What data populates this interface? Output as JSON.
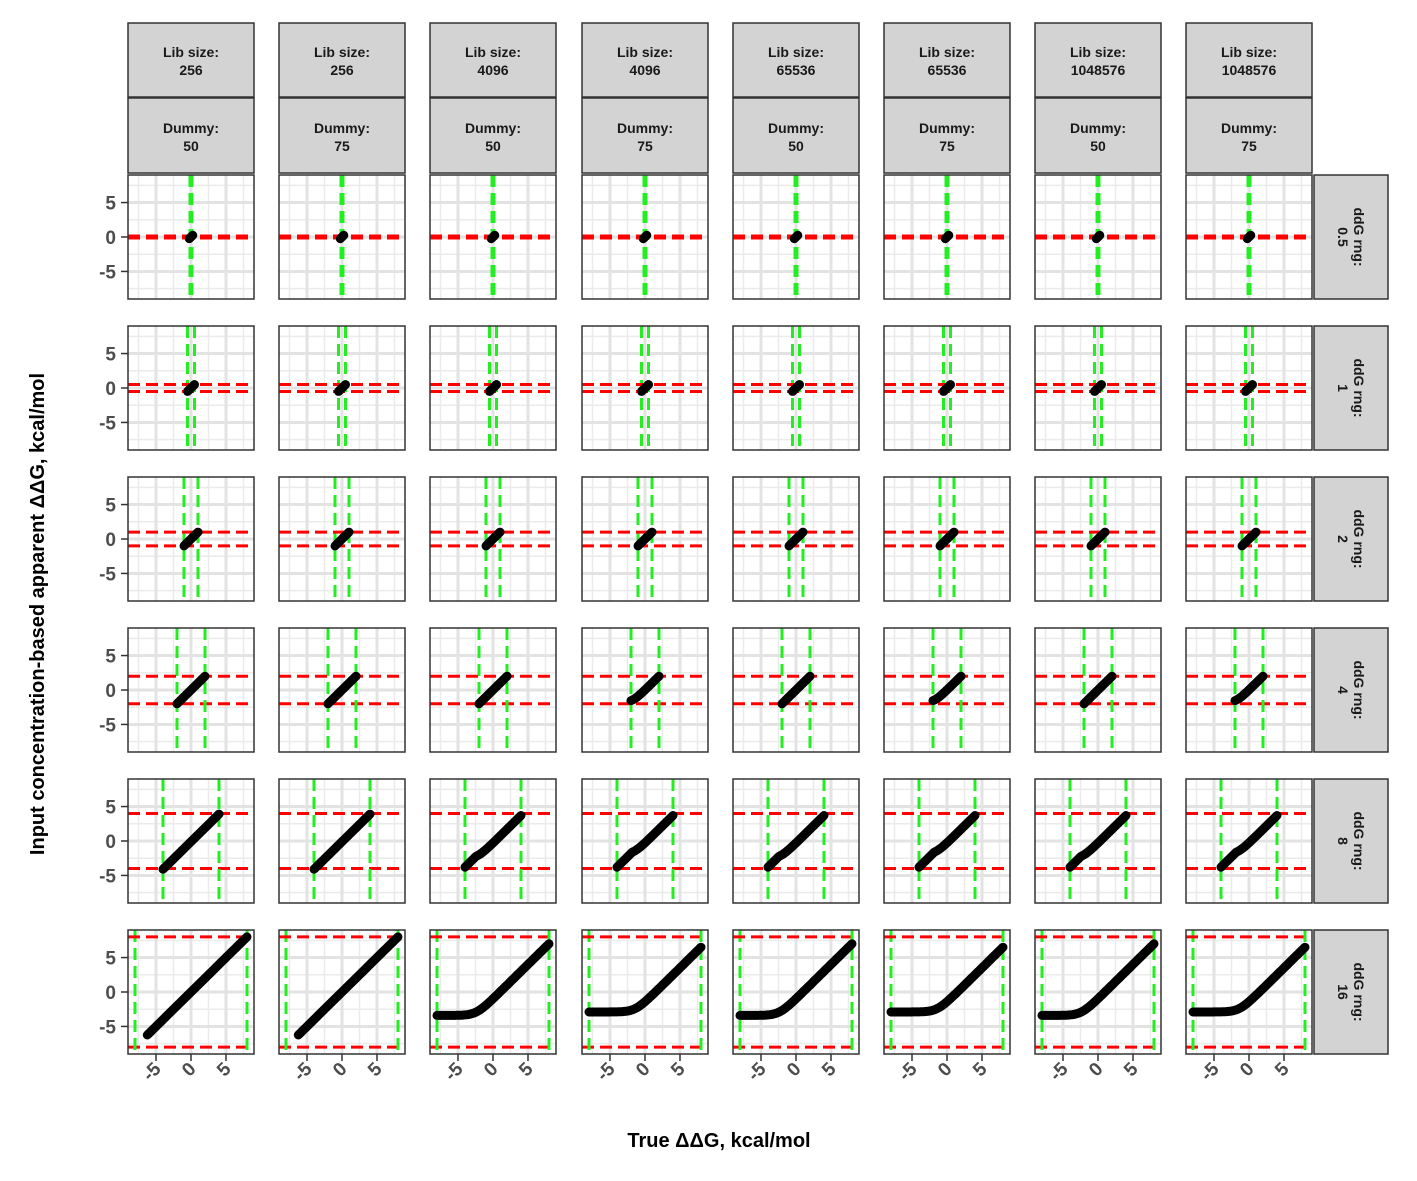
{
  "chart_data": {
    "type": "scatter",
    "xlabel": "True ΔΔG, kcal/mol",
    "ylabel": "Input concentration-based apparent ΔΔG, kcal/mol",
    "xlim": [
      -9,
      9
    ],
    "ylim": [
      -9,
      9
    ],
    "x_ticks": [
      "-5",
      "0",
      "5"
    ],
    "y_ticks": [
      "5",
      "0",
      "-5"
    ],
    "grid": true,
    "reference_lines": {
      "horizontal_color": "#ff0000",
      "vertical_color": "#22ee22",
      "style": "dashed"
    },
    "columns": [
      {
        "lib_label": "Lib size:",
        "lib_size": "256",
        "dummy_label": "Dummy:",
        "dummy": "50",
        "floor": null
      },
      {
        "lib_label": "Lib size:",
        "lib_size": "256",
        "dummy_label": "Dummy:",
        "dummy": "75",
        "floor": null
      },
      {
        "lib_label": "Lib size:",
        "lib_size": "4096",
        "dummy_label": "Dummy:",
        "dummy": "50",
        "floor": -3.4
      },
      {
        "lib_label": "Lib size:",
        "lib_size": "4096",
        "dummy_label": "Dummy:",
        "dummy": "75",
        "floor": -2.9
      },
      {
        "lib_label": "Lib size:",
        "lib_size": "65536",
        "dummy_label": "Dummy:",
        "dummy": "50",
        "floor": -3.4
      },
      {
        "lib_label": "Lib size:",
        "lib_size": "65536",
        "dummy_label": "Dummy:",
        "dummy": "75",
        "floor": -2.9
      },
      {
        "lib_label": "Lib size:",
        "lib_size": "1048576",
        "dummy_label": "Dummy:",
        "dummy": "50",
        "floor": -3.4
      },
      {
        "lib_label": "Lib size:",
        "lib_size": "1048576",
        "dummy_label": "Dummy:",
        "dummy": "75",
        "floor": -2.9
      }
    ],
    "rows": [
      {
        "label": "ddG rng:",
        "value": "0.5",
        "range": 0.5,
        "ref_lines": [
          0
        ],
        "xmin": -0.25,
        "xmax": 0.25
      },
      {
        "label": "ddG rng:",
        "value": "1",
        "range": 1,
        "ref_lines": [
          -0.5,
          0.5
        ],
        "xmin": -0.5,
        "xmax": 0.5
      },
      {
        "label": "ddG rng:",
        "value": "2",
        "range": 2,
        "ref_lines": [
          -1,
          1
        ],
        "xmin": -1,
        "xmax": 1
      },
      {
        "label": "ddG rng:",
        "value": "4",
        "range": 4,
        "ref_lines": [
          -2,
          2
        ],
        "xmin": -2,
        "xmax": 2
      },
      {
        "label": "ddG rng:",
        "value": "8",
        "range": 8,
        "ref_lines": [
          -4,
          4
        ],
        "xmin": -4,
        "xmax": 4
      },
      {
        "label": "ddG rng:",
        "value": "16",
        "range": 16,
        "ref_lines": [
          -8,
          8
        ],
        "xmin": -8,
        "xmax": 8
      }
    ],
    "curves": [
      {
        "row": "0.5",
        "col": 1,
        "points": [
          [
            -0.25,
            -0.25
          ],
          [
            0.25,
            0.25
          ]
        ]
      },
      {
        "row": "8",
        "col": 1,
        "points": [
          [
            -4,
            -3.6
          ],
          [
            -3,
            -2.9
          ],
          [
            0,
            0
          ],
          [
            4,
            4
          ]
        ]
      },
      {
        "row": "8",
        "col": 2,
        "points": [
          [
            -4,
            -3.5
          ],
          [
            -3,
            -2.8
          ],
          [
            0,
            0
          ],
          [
            4,
            4
          ]
        ]
      },
      {
        "row": "8",
        "col": 3,
        "points": [
          [
            -3.5,
            -2.6
          ],
          [
            -2.5,
            -2.4
          ],
          [
            -1,
            -1.2
          ],
          [
            1,
            1
          ],
          [
            3.5,
            3.6
          ]
        ]
      },
      {
        "row": "8",
        "col": 4,
        "points": [
          [
            -4,
            -2.0
          ],
          [
            -3,
            -2.0
          ],
          [
            -2,
            -1.6
          ],
          [
            0,
            0.1
          ],
          [
            3.5,
            3.4
          ]
        ]
      },
      {
        "row": "16",
        "col": 1,
        "points": [
          [
            -6.5,
            -6.2
          ],
          [
            8,
            8
          ]
        ]
      },
      {
        "row": "16",
        "col": 2,
        "points": [
          [
            -6,
            -6
          ],
          [
            8,
            8
          ]
        ]
      },
      {
        "row": "16",
        "col": 3,
        "points": [
          [
            -8,
            -3.4
          ],
          [
            -3.5,
            -3.3
          ],
          [
            -2,
            -2.4
          ],
          [
            0,
            -0.6
          ],
          [
            8,
            7
          ]
        ]
      },
      {
        "row": "16",
        "col": 4,
        "points": [
          [
            -8,
            -2.9
          ],
          [
            -3,
            -2.8
          ],
          [
            -1.5,
            -2.0
          ],
          [
            0,
            -0.9
          ],
          [
            8,
            6.5
          ]
        ]
      }
    ]
  }
}
